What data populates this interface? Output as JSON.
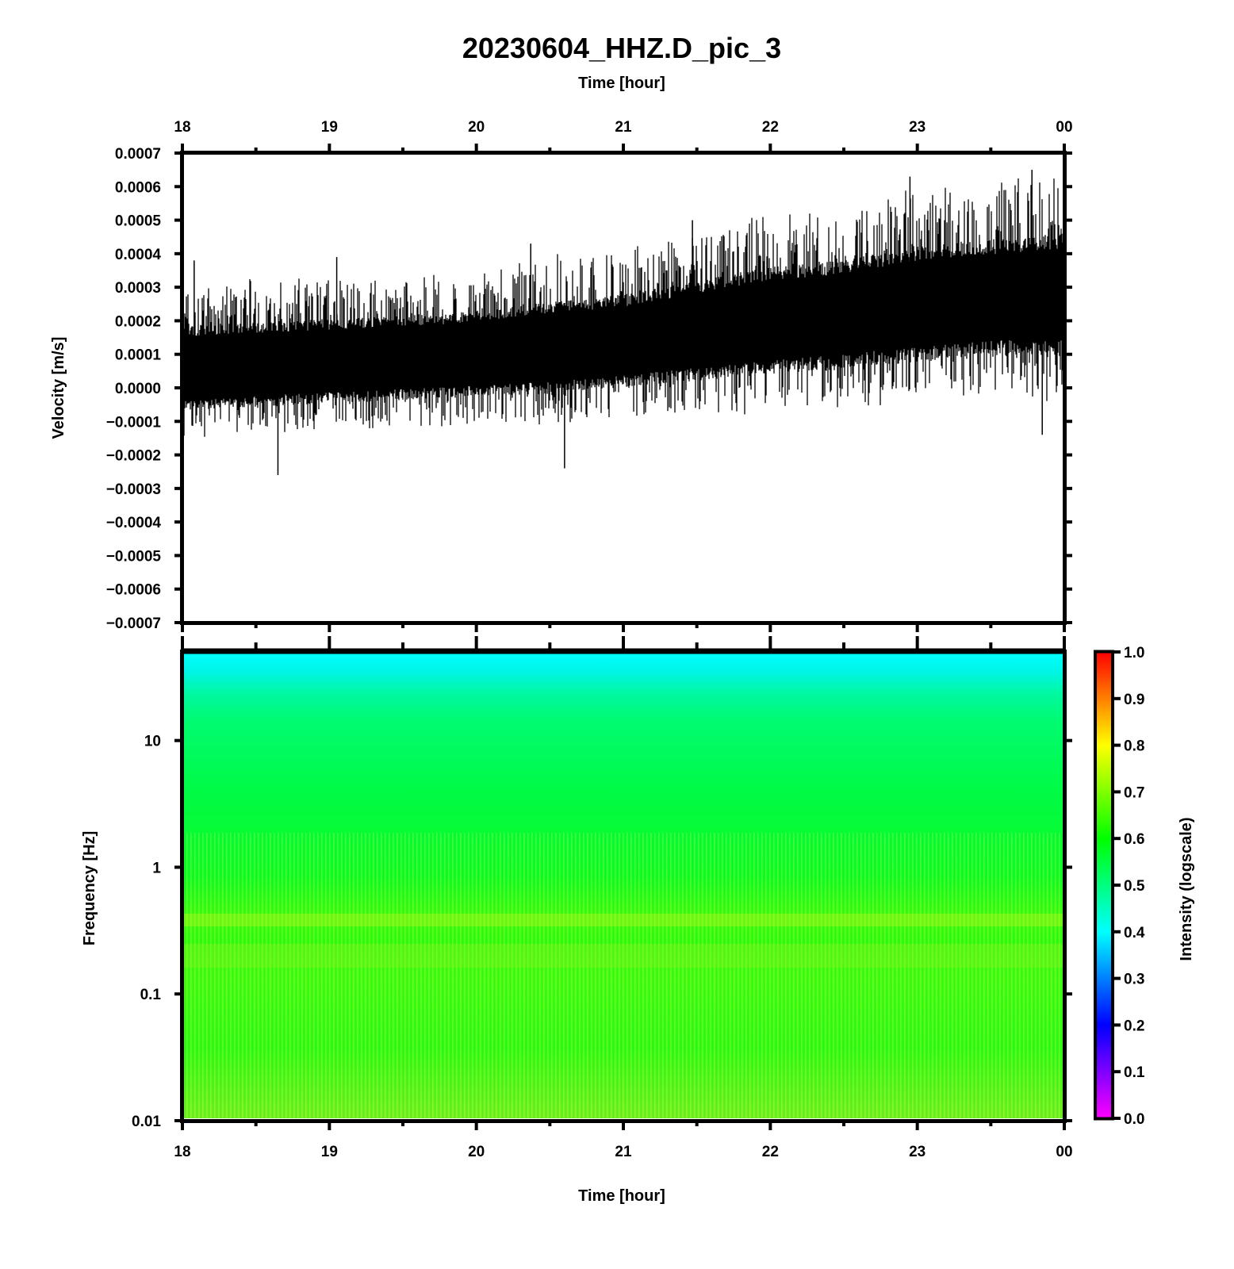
{
  "chart_data": [
    {
      "type": "line",
      "title": "20230604_HHZ.D_pic_3",
      "xlabel": "Time [hour]",
      "ylabel": "Velocity [m/s]",
      "x_tick_labels": [
        "18",
        "19",
        "20",
        "21",
        "22",
        "23",
        "00"
      ],
      "y_tick_labels": [
        "0.0007",
        "0.0006",
        "0.0005",
        "0.0004",
        "0.0003",
        "0.0002",
        "0.0001",
        "0.0000",
        "−0.0001",
        "−0.0002",
        "−0.0003",
        "−0.0004",
        "−0.0005",
        "−0.0006",
        "−0.0007"
      ],
      "xlim": [
        18,
        24
      ],
      "ylim": [
        -0.0007,
        0.0007
      ],
      "series_color": "#000000",
      "envelope": {
        "x": [
          18.0,
          18.5,
          19.0,
          19.5,
          20.0,
          20.5,
          21.0,
          21.5,
          22.0,
          22.5,
          23.0,
          23.5,
          24.0
        ],
        "center": [
          6e-05,
          7e-05,
          8e-05,
          9e-05,
          0.0001,
          0.00012,
          0.00014,
          0.00017,
          0.0002,
          0.00022,
          0.00025,
          0.00027,
          0.00028
        ],
        "half_width": [
          0.00011,
          0.00011,
          0.00011,
          0.00011,
          0.00011,
          0.00012,
          0.00012,
          0.00013,
          0.00014,
          0.00014,
          0.00015,
          0.00015,
          0.00016
        ]
      },
      "peaks": [
        {
          "x": 18.08,
          "y": 0.00038
        },
        {
          "x": 19.05,
          "y": 0.00039
        },
        {
          "x": 20.37,
          "y": 0.00043
        },
        {
          "x": 21.47,
          "y": 0.0005
        },
        {
          "x": 22.95,
          "y": 0.00063
        },
        {
          "x": 23.78,
          "y": 0.00065
        },
        {
          "x": 18.65,
          "y": -0.00026
        },
        {
          "x": 20.6,
          "y": -0.00024
        },
        {
          "x": 23.85,
          "y": -0.00014
        }
      ]
    },
    {
      "type": "heatmap",
      "xlabel": "Time [hour]",
      "ylabel": "Frequency [Hz]",
      "x_tick_labels": [
        "18",
        "19",
        "20",
        "21",
        "22",
        "23",
        "00"
      ],
      "y_tick_labels": [
        "10",
        "1",
        "0.1",
        "0.01"
      ],
      "y_scale": "log",
      "ylim": [
        0.01,
        50
      ],
      "colorbar": {
        "label": "Intensity (logscale)",
        "tick_labels": [
          "1.0",
          "0.9",
          "0.8",
          "0.7",
          "0.6",
          "0.5",
          "0.4",
          "0.3",
          "0.2",
          "0.1",
          "0.0"
        ],
        "range": [
          0.0,
          1.0
        ],
        "colors": [
          "#ff00ff",
          "#0000ff",
          "#00ffff",
          "#00ff00",
          "#ffff00",
          "#ff0000"
        ]
      },
      "intensity_profile": [
        {
          "freq": 50,
          "value": 0.43
        },
        {
          "freq": 30,
          "value": 0.5
        },
        {
          "freq": 10,
          "value": 0.58
        },
        {
          "freq": 1,
          "value": 0.61
        },
        {
          "freq": 0.4,
          "value": 0.66
        },
        {
          "freq": 0.2,
          "value": 0.65
        },
        {
          "freq": 0.05,
          "value": 0.63
        },
        {
          "freq": 0.01,
          "value": 0.68
        }
      ]
    }
  ]
}
